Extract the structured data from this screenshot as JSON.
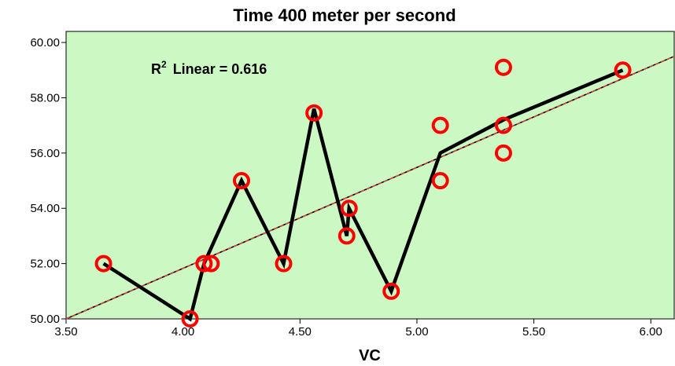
{
  "chart_data": {
    "type": "scatter",
    "title": "Time 400 meter per second",
    "xlabel": "VC",
    "ylabel": "",
    "xlim": [
      3.5,
      6.1
    ],
    "ylim": [
      50.0,
      60.4
    ],
    "x_ticks": [
      "3.50",
      "4.00",
      "4.50",
      "5.00",
      "5.50",
      "6.00"
    ],
    "y_ticks": [
      "50.00",
      "52.00",
      "54.00",
      "56.00",
      "58.00",
      "60.00"
    ],
    "annotation": {
      "base": "R",
      "superscript": "2",
      "text": "Linear = 0.616"
    },
    "background_color": "#ccf8c4",
    "marker_color": "#ff0000",
    "line_color": "#000000",
    "fit_line_color": "#e8423a",
    "points": [
      {
        "x": 3.66,
        "y": 52.0
      },
      {
        "x": 4.03,
        "y": 50.0
      },
      {
        "x": 4.09,
        "y": 52.0
      },
      {
        "x": 4.12,
        "y": 52.0
      },
      {
        "x": 4.25,
        "y": 55.0
      },
      {
        "x": 4.43,
        "y": 52.0
      },
      {
        "x": 4.56,
        "y": 57.45
      },
      {
        "x": 4.7,
        "y": 53.0
      },
      {
        "x": 4.71,
        "y": 54.0
      },
      {
        "x": 4.89,
        "y": 51.0
      },
      {
        "x": 5.1,
        "y": 57.0
      },
      {
        "x": 5.1,
        "y": 55.0
      },
      {
        "x": 5.37,
        "y": 59.1
      },
      {
        "x": 5.37,
        "y": 57.0
      },
      {
        "x": 5.37,
        "y": 56.0
      },
      {
        "x": 5.88,
        "y": 59.0
      }
    ],
    "interpolation_line": [
      {
        "x": 3.66,
        "y": 52.0
      },
      {
        "x": 4.03,
        "y": 50.0
      },
      {
        "x": 4.09,
        "y": 52.0
      },
      {
        "x": 4.25,
        "y": 55.0
      },
      {
        "x": 4.43,
        "y": 52.0
      },
      {
        "x": 4.56,
        "y": 57.6
      },
      {
        "x": 4.7,
        "y": 53.0
      },
      {
        "x": 4.71,
        "y": 54.0
      },
      {
        "x": 4.89,
        "y": 51.0
      },
      {
        "x": 5.1,
        "y": 56.0
      },
      {
        "x": 5.37,
        "y": 57.2
      },
      {
        "x": 5.88,
        "y": 59.0
      }
    ],
    "fit_line": [
      {
        "x": 3.5,
        "y": 50.0
      },
      {
        "x": 6.1,
        "y": 59.5
      }
    ]
  }
}
